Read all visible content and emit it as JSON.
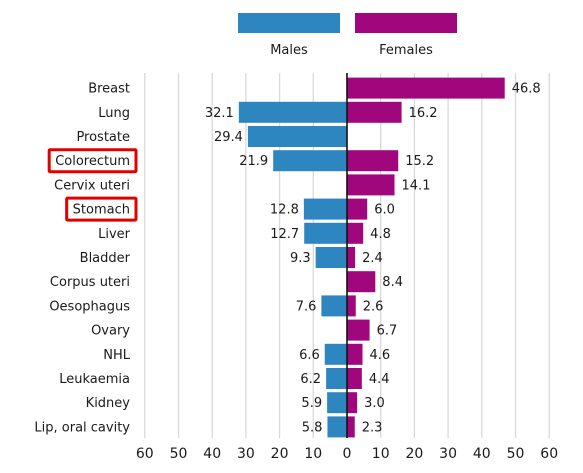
{
  "chart_data": {
    "type": "bar",
    "orientation": "horizontal-diverging",
    "categories": [
      "Breast",
      "Lung",
      "Prostate",
      "Colorectum",
      "Cervix uteri",
      "Stomach",
      "Liver",
      "Bladder",
      "Corpus uteri",
      "Oesophagus",
      "Ovary",
      "NHL",
      "Leukaemia",
      "Kidney",
      "Lip, oral cavity"
    ],
    "series": [
      {
        "name": "Males",
        "color": "#2e86c1",
        "values": [
          null,
          32.1,
          29.4,
          21.9,
          null,
          12.8,
          12.7,
          9.3,
          null,
          7.6,
          null,
          6.6,
          6.2,
          5.9,
          5.8
        ],
        "labels": [
          "",
          "32.1",
          "29.4",
          "21.9",
          "",
          "12.8",
          "12.7",
          "9.3",
          "",
          "7.6",
          "",
          "6.6",
          "6.2",
          "5.9",
          "5.8"
        ]
      },
      {
        "name": "Females",
        "color": "#a0077d",
        "values": [
          46.8,
          16.2,
          null,
          15.2,
          14.1,
          6.0,
          4.8,
          2.4,
          8.4,
          2.6,
          6.7,
          4.6,
          4.4,
          3.0,
          2.3
        ],
        "labels": [
          "46.8",
          "16.2",
          "",
          "15.2",
          "14.1",
          "6.0",
          "4.8",
          "2.4",
          "8.4",
          "2.6",
          "6.7",
          "4.6",
          "4.4",
          "3.0",
          "2.3"
        ]
      }
    ],
    "highlighted": [
      "Colorectum",
      "Stomach"
    ],
    "highlight_color": "#e00000",
    "xlim": [
      -60,
      60
    ],
    "xticks": [
      "60",
      "50",
      "40",
      "30",
      "20",
      "10",
      "0",
      "10",
      "20",
      "30",
      "40",
      "50",
      "60"
    ],
    "grid": true,
    "legend_position": "top"
  }
}
